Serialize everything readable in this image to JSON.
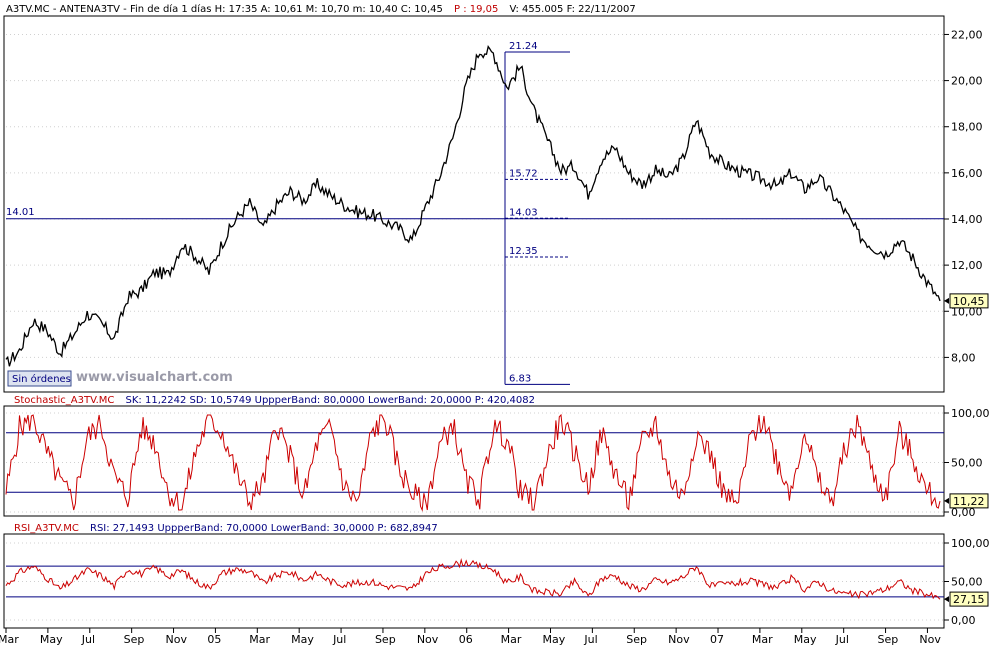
{
  "window": {
    "header_main": "A3TV.MC - ANTENA3TV - Fin de día 1 días  H: 17:35  A: 10,61  M: 10,70  m: 10,40  C: 10,45",
    "header_p": "P : 19,05",
    "header_rest": "V: 455.005  F: 22/11/2007",
    "orders_button": "Sin órdenes",
    "watermark": "www.visualchart.com",
    "colors": {
      "price": "#000000",
      "indicator": "#cc0000",
      "band": "#000080",
      "grid": "#c8c8c8",
      "tag": "#ffffc0"
    }
  },
  "chart_data": [
    {
      "type": "line",
      "panel": "price",
      "series": [
        {
          "name": "A3TV.MC",
          "x_start": "2004-03",
          "x_end": "2007-11",
          "values": [
            7.7,
            8.3,
            9.6,
            9.2,
            8.2,
            9.0,
            9.9,
            9.5,
            8.8,
            10.6,
            10.9,
            11.7,
            11.6,
            12.9,
            12.4,
            11.7,
            13.0,
            14.0,
            14.7,
            13.6,
            14.6,
            15.2,
            14.8,
            15.5,
            15.0,
            14.6,
            14.3,
            14.2,
            13.9,
            13.6,
            13.1,
            14.5,
            15.8,
            17.5,
            19.8,
            21.3,
            21.2,
            19.7,
            20.6,
            18.7,
            17.4,
            16.1,
            16.3,
            15.1,
            16.6,
            17.1,
            16.0,
            15.5,
            16.1,
            15.8,
            16.6,
            18.3,
            16.9,
            16.4,
            16.1,
            15.9,
            15.7,
            15.4,
            16.0,
            15.3,
            15.8,
            15.1,
            14.3,
            13.3,
            12.8,
            12.5,
            13.1,
            12.3,
            11.3,
            10.45
          ]
        }
      ],
      "yticks": [
        "8,00",
        "10,00",
        "12,00",
        "14,00",
        "16,00",
        "18,00",
        "20,00",
        "22,00"
      ],
      "ylim": [
        6.5,
        22.8
      ],
      "last_value": "10,45",
      "hline": {
        "value": 14.01,
        "label": "14.01"
      },
      "fibonacci": [
        {
          "value": 21.24,
          "label": "21.24"
        },
        {
          "value": 15.72,
          "label": "15.72"
        },
        {
          "value": 14.03,
          "label": "14.03"
        },
        {
          "value": 12.35,
          "label": "12.35"
        },
        {
          "value": 6.83,
          "label": "6.83"
        }
      ]
    },
    {
      "type": "line",
      "panel": "stochastic",
      "header_name": "Stochastic_A3TV.MC",
      "header_values": "SK: 11,2242  SD: 10,5749  UppperBand: 80,0000  LowerBand: 20,0000  P: 420,4082",
      "yticks": [
        "0,00",
        "50,00",
        "100,00"
      ],
      "ylim": [
        0,
        100
      ],
      "bands": [
        80,
        20
      ],
      "last_value": "11,22",
      "series": [
        {
          "name": "SK",
          "values": [
            20,
            85,
            95,
            60,
            30,
            10,
            75,
            90,
            35,
            15,
            85,
            70,
            20,
            5,
            60,
            95,
            80,
            40,
            10,
            30,
            90,
            55,
            15,
            70,
            85,
            25,
            10,
            80,
            95,
            45,
            20,
            5,
            65,
            90,
            30,
            15,
            85,
            75,
            20,
            10,
            55,
            95,
            60,
            25,
            80,
            40,
            10,
            70,
            90,
            35,
            15,
            80,
            60,
            20,
            5,
            75,
            95,
            50,
            20,
            85,
            30,
            10,
            65,
            90,
            40,
            15,
            80,
            55,
            20,
            11
          ]
        }
      ]
    },
    {
      "type": "line",
      "panel": "rsi",
      "header_name": "RSI_A3TV.MC",
      "header_values": "RSI: 27,1493  UppperBand: 70,0000  LowerBand: 30,0000  P: 682,8947",
      "yticks": [
        "0,00",
        "50,00",
        "100,00"
      ],
      "ylim": [
        0,
        100
      ],
      "bands": [
        70,
        30
      ],
      "last_value": "27,15",
      "series": [
        {
          "name": "RSI",
          "values": [
            45,
            62,
            70,
            55,
            40,
            52,
            65,
            58,
            44,
            66,
            60,
            68,
            57,
            64,
            50,
            42,
            61,
            66,
            63,
            48,
            58,
            62,
            52,
            60,
            50,
            46,
            48,
            50,
            44,
            42,
            40,
            60,
            68,
            72,
            75,
            70,
            66,
            48,
            56,
            38,
            36,
            34,
            50,
            30,
            54,
            58,
            44,
            40,
            52,
            48,
            56,
            70,
            44,
            46,
            48,
            50,
            46,
            42,
            54,
            40,
            50,
            38,
            34,
            32,
            36,
            40,
            50,
            38,
            34,
            27
          ]
        }
      ]
    }
  ],
  "x_axis": {
    "months": [
      {
        "label": "Mar",
        "i": 0
      },
      {
        "label": "May",
        "i": 2
      },
      {
        "label": "Jul",
        "i": 4
      },
      {
        "label": "Sep",
        "i": 6
      },
      {
        "label": "Nov",
        "i": 8
      },
      {
        "label": "05",
        "i": 10
      },
      {
        "label": "Mar",
        "i": 12
      },
      {
        "label": "May",
        "i": 14
      },
      {
        "label": "Jul",
        "i": 16
      },
      {
        "label": "Sep",
        "i": 18
      },
      {
        "label": "Nov",
        "i": 20
      },
      {
        "label": "06",
        "i": 22
      },
      {
        "label": "Mar",
        "i": 24
      },
      {
        "label": "May",
        "i": 26
      },
      {
        "label": "Jul",
        "i": 28
      },
      {
        "label": "Sep",
        "i": 30
      },
      {
        "label": "Nov",
        "i": 32
      },
      {
        "label": "07",
        "i": 34
      },
      {
        "label": "Mar",
        "i": 36
      },
      {
        "label": "May",
        "i": 38
      },
      {
        "label": "Jul",
        "i": 40
      },
      {
        "label": "Sep",
        "i": 42
      },
      {
        "label": "Nov",
        "i": 44
      }
    ]
  }
}
